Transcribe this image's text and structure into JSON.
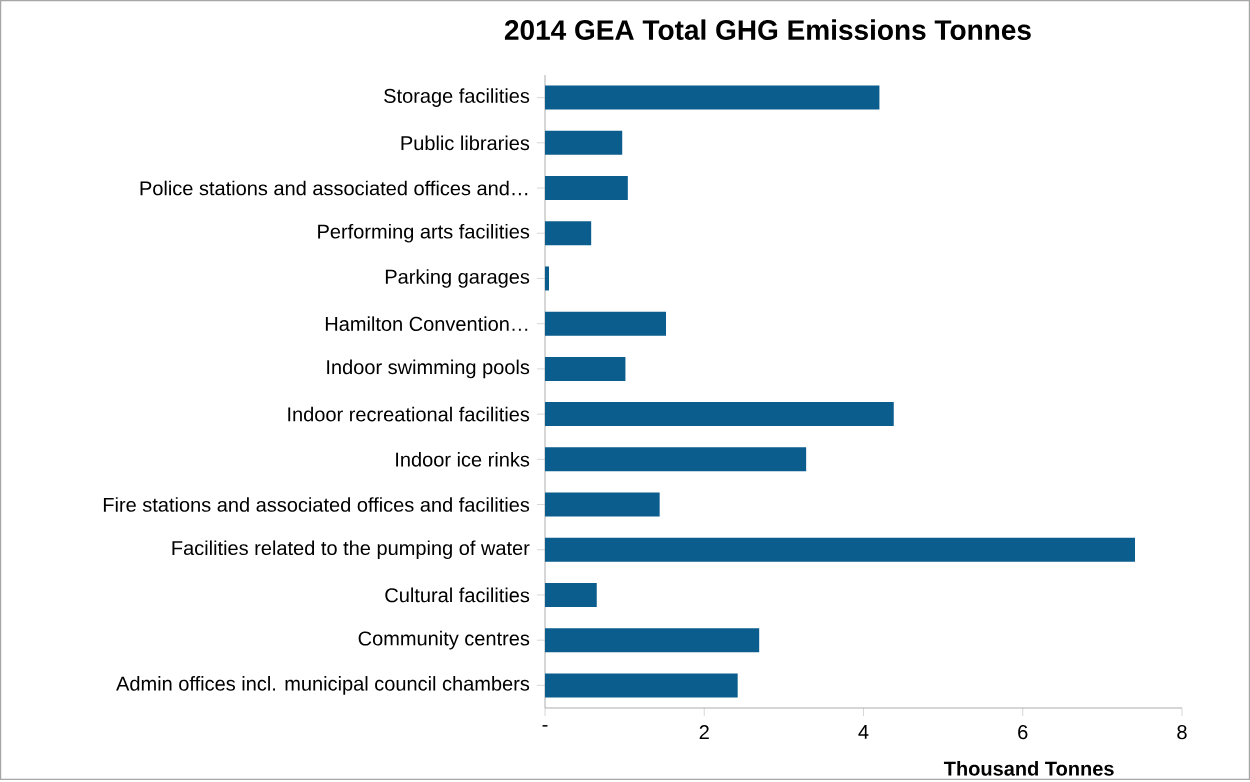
{
  "chart_data": {
    "type": "bar",
    "orientation": "horizontal",
    "title": "2014 GEA Total GHG Emissions Tonnes",
    "xlabel": "Thousand Tonnes",
    "categories": [
      "Storage facilities",
      "Public libraries",
      "Police stations and associated offices and…",
      "Performing arts facilities",
      "Parking garages",
      "Hamilton Convention…",
      "Indoor swimming pools",
      "Indoor recreational facilities",
      "Indoor ice rinks",
      "Fire stations and associated offices and facilities",
      "Facilities related to the pumping of water",
      "Cultural facilities",
      "Community centres",
      "Admin offices incl. municipal council chambers"
    ],
    "values": [
      4.2,
      0.97,
      1.04,
      0.58,
      0.05,
      1.52,
      1.01,
      4.38,
      3.28,
      1.44,
      7.41,
      0.65,
      2.69,
      2.42
    ],
    "color": "#0b5d8e",
    "xlim": [
      0,
      8
    ],
    "xticks": [
      {
        "value": 0,
        "label": "-"
      },
      2,
      4,
      6,
      8
    ]
  }
}
